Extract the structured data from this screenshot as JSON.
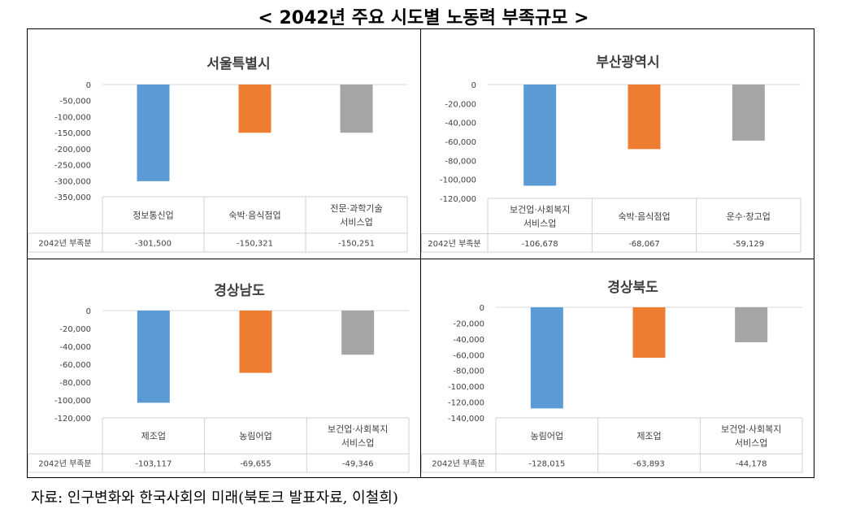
{
  "title": "< 2042년 주요 시도별 노동력 부족규모 >",
  "source": "자료: 인구변화와 한국사회의 미래(북토크 발표자료, 이철희)",
  "colors": [
    "#5B9BD5",
    "#ED7D31",
    "#A5A5A5"
  ],
  "chart_data": [
    {
      "type": "bar",
      "title": "서울특별시",
      "row_label": "2042년 부족분",
      "categories": [
        [
          "정보통신업"
        ],
        [
          "숙박·음식점업"
        ],
        [
          "전문·과학기술",
          "서비스업"
        ]
      ],
      "values": [
        -301500,
        -150321,
        -150251
      ],
      "value_labels": [
        "-301,500",
        "-150,321",
        "-150,251"
      ],
      "ylim": [
        -350000,
        0
      ],
      "yticks": [
        "0",
        "-50,000",
        "-100,000",
        "-150,000",
        "-200,000",
        "-250,000",
        "-300,000",
        "-350,000"
      ],
      "ystep": 50000
    },
    {
      "type": "bar",
      "title": "부산광역시",
      "row_label": "2042년 부족분",
      "categories": [
        [
          "보건업·사회복지",
          "서비스업"
        ],
        [
          "숙박·음식점업"
        ],
        [
          "운수·창고업"
        ]
      ],
      "values": [
        -106678,
        -68067,
        -59129
      ],
      "value_labels": [
        "-106,678",
        "-68,067",
        "-59,129"
      ],
      "ylim": [
        -120000,
        0
      ],
      "yticks": [
        "0",
        "-20,000",
        "-40,000",
        "-60,000",
        "-80,000",
        "-100,000",
        "-120,000"
      ],
      "ystep": 20000
    },
    {
      "type": "bar",
      "title": "경상남도",
      "row_label": "2042년 부족분",
      "categories": [
        [
          "제조업"
        ],
        [
          "농림어업"
        ],
        [
          "보건업·사회복지",
          "서비스업"
        ]
      ],
      "values": [
        -103117,
        -69655,
        -49346
      ],
      "value_labels": [
        "-103,117",
        "-69,655",
        "-49,346"
      ],
      "ylim": [
        -120000,
        0
      ],
      "yticks": [
        "0",
        "-20,000",
        "-40,000",
        "-60,000",
        "-80,000",
        "-100,000",
        "-120,000"
      ],
      "ystep": 20000
    },
    {
      "type": "bar",
      "title": "경상북도",
      "row_label": "2042년 부족분",
      "categories": [
        [
          "농림어업"
        ],
        [
          "제조업"
        ],
        [
          "보건업·사회복지",
          "서비스업"
        ]
      ],
      "values": [
        -128015,
        -63893,
        -44178
      ],
      "value_labels": [
        "-128,015",
        "-63,893",
        "-44,178"
      ],
      "ylim": [
        -140000,
        0
      ],
      "yticks": [
        "0",
        "-20,000",
        "-40,000",
        "-60,000",
        "-80,000",
        "-100,000",
        "-120,000",
        "-140,000"
      ],
      "ystep": 20000
    }
  ]
}
